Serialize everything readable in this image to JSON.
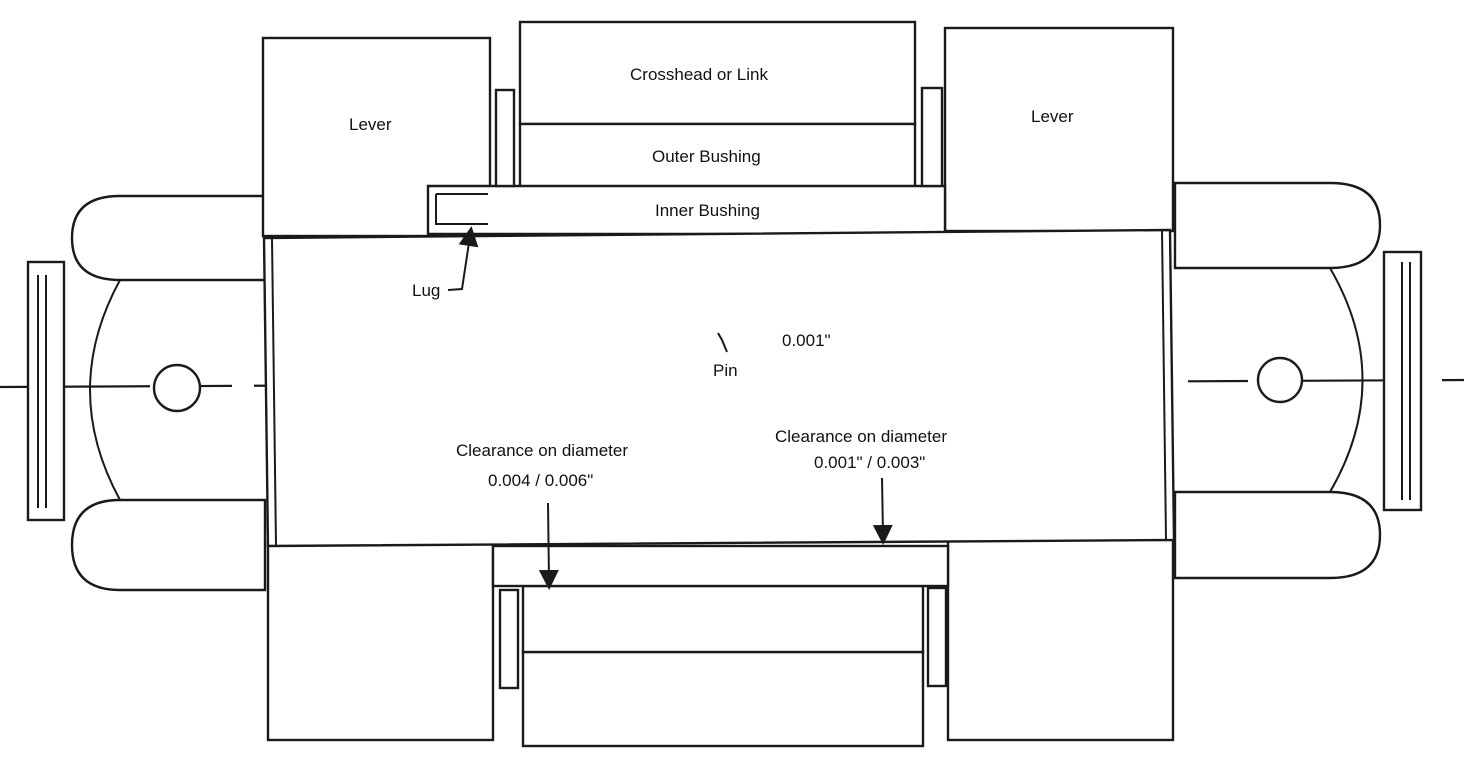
{
  "labels": {
    "crosshead": "Crosshead  or Link",
    "lever_left": "Lever",
    "lever_right": "Lever",
    "outer_bushing": "Outer Bushing",
    "inner_bushing": "Inner Bushing",
    "lug": "Lug",
    "pin": "Pin",
    "pin_clearance": "0.001\"",
    "clearance_left_title": "Clearance on diameter",
    "clearance_left_value": "0.004 / 0.006\"",
    "clearance_right_title": "Clearance on diameter",
    "clearance_right_value": "0.001\"  /  0.003\""
  },
  "colors": {
    "line": "#1a1a1a",
    "paper": "#ffffff",
    "text": "#111111"
  }
}
